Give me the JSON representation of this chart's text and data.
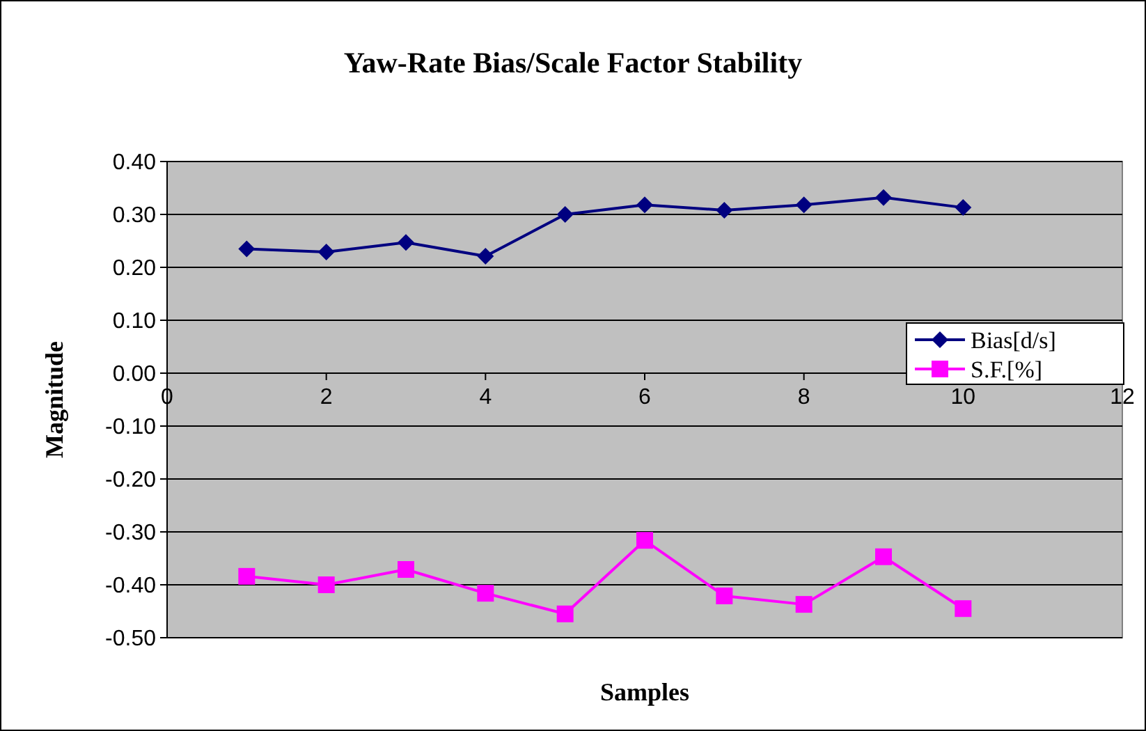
{
  "chart_data": {
    "type": "line",
    "title": "Yaw-Rate Bias/Scale Factor Stability",
    "xlabel": "Samples",
    "ylabel": "Magnitude",
    "x": [
      1,
      2,
      3,
      4,
      5,
      6,
      7,
      8,
      9,
      10
    ],
    "series": [
      {
        "name": "Bias[d/s]",
        "color": "#000080",
        "marker": "diamond",
        "values": [
          0.235,
          0.229,
          0.247,
          0.221,
          0.3,
          0.318,
          0.308,
          0.318,
          0.332,
          0.313
        ]
      },
      {
        "name": "S.F.[%]",
        "color": "#ff00ff",
        "marker": "square",
        "values": [
          -0.384,
          -0.4,
          -0.371,
          -0.416,
          -0.455,
          -0.316,
          -0.421,
          -0.437,
          -0.347,
          -0.445
        ]
      }
    ],
    "xlim": [
      0,
      12
    ],
    "xticks": [
      0,
      2,
      4,
      6,
      8,
      10,
      12
    ],
    "ylim": [
      -0.5,
      0.4
    ],
    "yticks": [
      {
        "value": -0.5,
        "label": "-0.50"
      },
      {
        "value": -0.4,
        "label": "-0.40"
      },
      {
        "value": -0.3,
        "label": "-0.30"
      },
      {
        "value": -0.2,
        "label": "-0.20"
      },
      {
        "value": -0.1,
        "label": "-0.10"
      },
      {
        "value": 0,
        "label": "0.00"
      },
      {
        "value": 0.1,
        "label": "0.10"
      },
      {
        "value": 0.2,
        "label": "0.20"
      },
      {
        "value": 0.3,
        "label": "0.30"
      },
      {
        "value": 0.4,
        "label": "0.40"
      }
    ],
    "grid": "y",
    "legend": "right"
  }
}
